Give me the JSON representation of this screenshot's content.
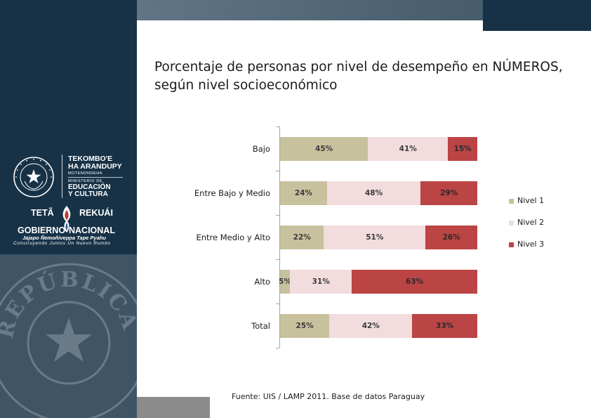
{
  "branding": {
    "ministry_line1": "TEKOMBO'E",
    "ministry_line2": "HA ARANDUPY",
    "ministry_line3": "MOTENONDEHA",
    "ministry_line4": "MINISTERIO DE",
    "ministry_line5": "EDUCACIÓN",
    "ministry_line6": "Y CULTURA",
    "gov_word1": "TETÃ",
    "gov_word2": "REKUÁI",
    "gov_word3": "GOBIERNO",
    "gov_word4": "NACIONAL",
    "gov_tagline1": "Jajapo Ñemoñiveppa Tape Pyahu",
    "gov_tagline2": "Construyendo Juntos Un Nuevo Rumbo",
    "seal_text": "REPÚBLICA DEL PARAGUAY"
  },
  "colors": {
    "panel": "#173247",
    "nivel1": "#c8c19e",
    "nivel2": "#f2dcdd",
    "nivel3": "#bb4444"
  },
  "chart_data": {
    "type": "bar",
    "orientation": "horizontal",
    "stacked": true,
    "percent_stacked": true,
    "title": "Porcentaje de personas por nivel de desempeño en NÚMEROS, según nivel socioeconómico",
    "categories": [
      "Bajo",
      "Entre Bajo y Medio",
      "Entre Medio y Alto",
      "Alto",
      "Total"
    ],
    "series": [
      {
        "name": "Nivel 1",
        "values": [
          45,
          24,
          22,
          5,
          25
        ],
        "labels": [
          "45%",
          "24%",
          "22%",
          "5%",
          "25%"
        ]
      },
      {
        "name": "Nivel 2",
        "values": [
          41,
          48,
          51,
          31,
          42
        ],
        "labels": [
          "41%",
          "48%",
          "51%",
          "31%",
          "42%"
        ]
      },
      {
        "name": "Nivel 3",
        "values": [
          15,
          29,
          26,
          63,
          33
        ],
        "labels": [
          "15%",
          "29%",
          "26%",
          "63%",
          "33%"
        ]
      }
    ],
    "legend_position": "right",
    "xlim": [
      0,
      100
    ]
  },
  "source": "Fuente:  UIS / LAMP 2011. Base de datos Paraguay"
}
